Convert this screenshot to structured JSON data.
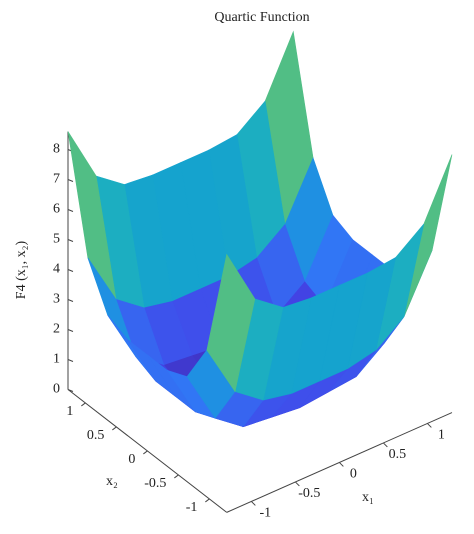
{
  "chart_data": {
    "type": "surface",
    "title": "Quartic Function",
    "x1_label": "x₁",
    "x2_label": "x₂",
    "z_label": "F4 (x₁, x₂)",
    "colormap": "parula",
    "x1": [
      -1.28,
      -0.96,
      -0.64,
      -0.32,
      0,
      0.32,
      0.64,
      0.96,
      1.28
    ],
    "x2": [
      -1.28,
      -0.96,
      -0.64,
      -0.32,
      0,
      0.32,
      0.64,
      0.96,
      1.28
    ],
    "z": [
      [
        8.6,
        6.7,
        6.0,
        5.9,
        5.9,
        5.9,
        6.0,
        6.7,
        8.6
      ],
      [
        4.9,
        3.1,
        2.4,
        2.2,
        2.2,
        2.2,
        2.4,
        3.1,
        4.9
      ],
      [
        3.5,
        1.7,
        1.0,
        0.9,
        0.8,
        0.9,
        1.0,
        1.7,
        3.5
      ],
      [
        3.2,
        1.4,
        0.7,
        0.5,
        0.5,
        0.5,
        0.7,
        1.4,
        3.2
      ],
      [
        3.2,
        1.4,
        0.7,
        0.5,
        0.5,
        0.5,
        0.7,
        1.3,
        3.2
      ],
      [
        3.2,
        1.4,
        0.7,
        0.5,
        0.5,
        0.5,
        0.7,
        1.4,
        3.2
      ],
      [
        3.5,
        1.7,
        1.0,
        0.9,
        0.8,
        0.9,
        1.0,
        1.7,
        3.5
      ],
      [
        4.9,
        3.1,
        2.4,
        2.2,
        2.2,
        2.2,
        2.4,
        3.1,
        4.9
      ],
      [
        8.6,
        6.7,
        6.0,
        5.9,
        5.9,
        5.9,
        6.0,
        6.7,
        8.6
      ]
    ],
    "x1lim": [
      -1.28,
      1.28
    ],
    "x2lim": [
      -1.28,
      1.28
    ],
    "zlim": [
      0,
      8.6
    ],
    "x1ticks": [
      -1,
      -0.5,
      0,
      0.5,
      1
    ],
    "x2ticks": [
      -1,
      -0.5,
      0,
      0.5,
      1
    ],
    "zticks": [
      0,
      1,
      2,
      3,
      4,
      5,
      6,
      7,
      8
    ]
  }
}
